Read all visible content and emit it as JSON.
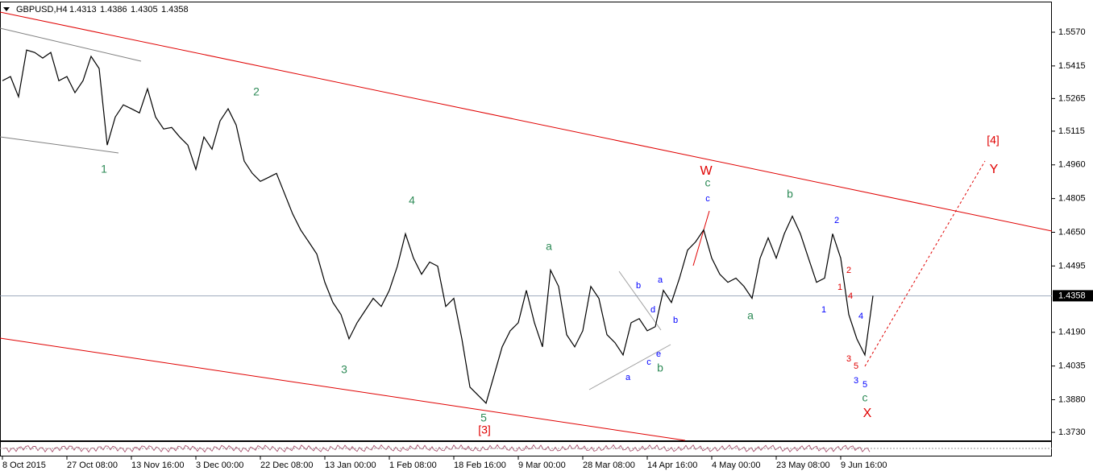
{
  "chart_data": {
    "type": "line",
    "symbol": "GBPUSD,H4",
    "ohlc": [
      1.4313,
      1.4386,
      1.4305,
      1.4358
    ],
    "color": "#000000",
    "categories": [
      "8 Oct 2015",
      null,
      null,
      null,
      null,
      null,
      null,
      null,
      "27 Oct 08:00",
      null,
      null,
      null,
      null,
      null,
      null,
      null,
      "13 Nov 16:00",
      null,
      null,
      null,
      null,
      null,
      null,
      null,
      "3 Dec 00:00",
      null,
      null,
      null,
      null,
      null,
      null,
      null,
      "22 Dec 08:00",
      null,
      null,
      null,
      null,
      null,
      null,
      null,
      "13 Jan 00:00",
      null,
      null,
      null,
      null,
      null,
      null,
      null,
      "1 Feb 08:00",
      null,
      null,
      null,
      null,
      null,
      null,
      null,
      "18 Feb 16:00",
      null,
      null,
      null,
      null,
      null,
      null,
      null,
      "9 Mar 00:00",
      null,
      null,
      null,
      null,
      null,
      null,
      null,
      "28 Mar 08:00",
      null,
      null,
      null,
      null,
      null,
      null,
      null,
      "14 Apr 16:00",
      null,
      null,
      null,
      null,
      null,
      null,
      null,
      "4 May 00:00",
      null,
      null,
      null,
      null,
      null,
      null,
      null,
      "23 May 08:00",
      null,
      null,
      null,
      null,
      null,
      null,
      null,
      "9 Jun 16:00",
      null,
      null,
      null,
      null
    ],
    "values": [
      1.5347,
      1.5366,
      1.5273,
      1.5488,
      1.5477,
      1.5451,
      1.5477,
      1.5347,
      1.5366,
      1.5292,
      1.5347,
      1.5459,
      1.5403,
      1.5051,
      1.518,
      1.5236,
      1.5218,
      1.5199,
      1.531,
      1.518,
      1.5125,
      1.5132,
      1.5088,
      1.5051,
      1.4939,
      1.5088,
      1.5032,
      1.5162,
      1.5218,
      1.5143,
      1.4977,
      1.4921,
      1.4884,
      1.4902,
      1.4921,
      1.4828,
      1.4735,
      1.4661,
      1.4606,
      1.455,
      1.442,
      1.4327,
      1.4272,
      1.416,
      1.4234,
      1.429,
      1.4346,
      1.4309,
      1.4383,
      1.4494,
      1.4643,
      1.4531,
      1.4457,
      1.4513,
      1.4494,
      1.4309,
      1.4346,
      1.416,
      1.3938,
      1.3901,
      1.3864,
      1.3993,
      1.4123,
      1.4197,
      1.4234,
      1.4383,
      1.4234,
      1.4123,
      1.4476,
      1.4401,
      1.4179,
      1.4123,
      1.4197,
      1.4401,
      1.4346,
      1.4179,
      1.4142,
      1.4086,
      1.4234,
      1.4253,
      1.4197,
      1.4216,
      1.4383,
      1.4327,
      1.4439,
      1.4568,
      1.4606,
      1.4661,
      1.4531,
      1.4457,
      1.442,
      1.4439,
      1.4401,
      1.4346,
      1.4531,
      1.4624,
      1.4531,
      1.4643,
      1.4724,
      1.4643,
      1.4531,
      1.442,
      1.4439,
      1.4643,
      1.4531,
      1.4272,
      1.416,
      1.4086,
      1.4358
    ],
    "ylim": [
      1.3693,
      1.5707
    ],
    "yticks": [
      {
        "value": 1.557,
        "label": "1.5570"
      },
      1.5415,
      1.5265,
      1.5115,
      {
        "value": 1.496,
        "label": "1.4960"
      },
      1.4805,
      {
        "value": 1.465,
        "label": "1.4650"
      },
      1.4495,
      {
        "value": 1.419,
        "label": "1.4190"
      },
      1.4035,
      {
        "value": 1.388,
        "label": "1.3880"
      },
      {
        "value": 1.373,
        "label": "1.3730"
      }
    ],
    "annotations": [
      {
        "text": "1",
        "color": "#2e8b57"
      },
      {
        "text": "2",
        "color": "#2e8b57"
      },
      {
        "text": "3",
        "color": "#2e8b57"
      },
      {
        "text": "4",
        "color": "#2e8b57"
      },
      {
        "text": "5",
        "color": "#2e8b57"
      },
      {
        "text": "[3]",
        "color": "#e00000"
      },
      {
        "text": "a",
        "color": "#2e8b57"
      },
      {
        "text": "b",
        "color": "#2e8b57"
      },
      {
        "text": "c",
        "color": "#2e8b57"
      },
      {
        "text": "W",
        "color": "#e00000"
      },
      {
        "text": "a",
        "color": "#2e8b57"
      },
      {
        "text": "b",
        "color": "#2e8b57"
      },
      {
        "text": "c",
        "color": "#2e8b57"
      },
      {
        "text": "X",
        "color": "#e00000"
      },
      {
        "text": "[4]",
        "color": "#e00000"
      },
      {
        "text": "Y",
        "color": "#e00000"
      },
      {
        "text": "a",
        "color": "#0000ff"
      },
      {
        "text": "b",
        "color": "#0000ff"
      },
      {
        "text": "c",
        "color": "#0000ff"
      },
      {
        "text": "d",
        "color": "#0000ff"
      },
      {
        "text": "e",
        "color": "#0000ff"
      },
      {
        "text": "a",
        "color": "#0000ff"
      },
      {
        "text": "b",
        "color": "#0000ff"
      },
      {
        "text": "c",
        "color": "#0000ff"
      },
      {
        "text": "1",
        "color": "#0000ff"
      },
      {
        "text": "2",
        "color": "#0000ff"
      },
      {
        "text": "3",
        "color": "#0000ff"
      },
      {
        "text": "5",
        "color": "#0000ff"
      },
      {
        "text": "4",
        "color": "#0000ff"
      },
      {
        "text": "1",
        "color": "#e00000"
      },
      {
        "text": "2",
        "color": "#e00000"
      },
      {
        "text": "4",
        "color": "#e00000"
      },
      {
        "text": "3",
        "color": "#e00000"
      },
      {
        "text": "5",
        "color": "#e00000"
      }
    ]
  }
}
